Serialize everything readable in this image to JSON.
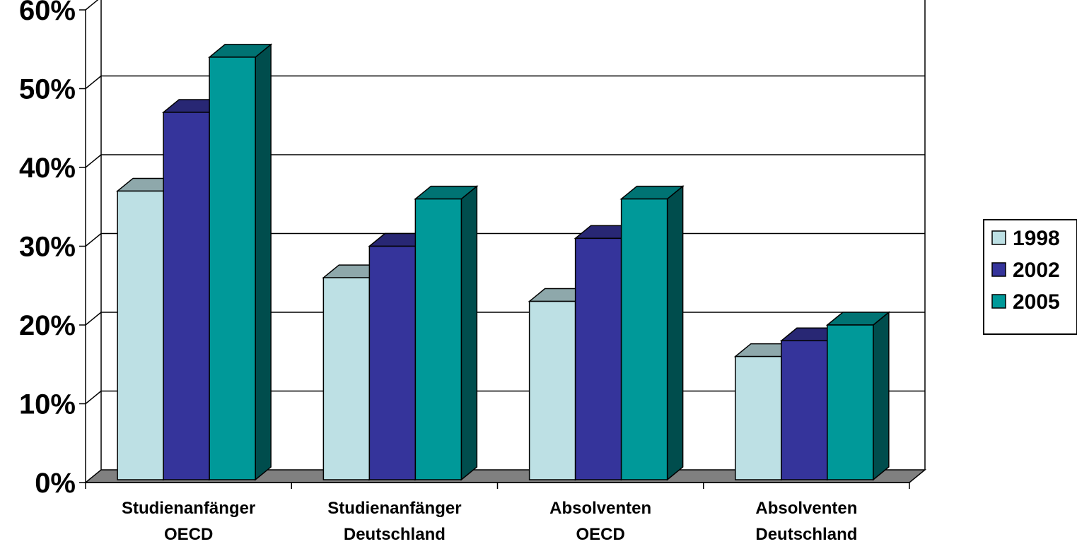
{
  "chart_data": {
    "type": "bar",
    "categories": [
      [
        "Studienanfänger",
        "OECD"
      ],
      [
        "Studienanfänger",
        "Deutschland"
      ],
      [
        "Absolventen",
        "OECD"
      ],
      [
        "Absolventen",
        "Deutschland"
      ]
    ],
    "series": [
      {
        "name": "1998",
        "values": [
          37,
          26,
          23,
          16
        ]
      },
      {
        "name": "2002",
        "values": [
          47,
          30,
          31,
          18
        ]
      },
      {
        "name": "2005",
        "values": [
          54,
          36,
          36,
          20
        ]
      }
    ],
    "ylim": [
      0,
      60
    ],
    "y_ticks": [
      "0%",
      "10%",
      "20%",
      "30%",
      "40%",
      "50%",
      "60%"
    ],
    "grid": true,
    "legend_position": "right",
    "three_d": true
  },
  "colors": {
    "series_front": [
      "#BDE0E4",
      "#35349B",
      "#009999"
    ],
    "series_top": [
      "#8EA8AB",
      "#282774",
      "#007373"
    ],
    "series_side": [
      "#5E7072",
      "#1A1A4E",
      "#004D4D"
    ],
    "floor": "#808080",
    "gridline": "#000000"
  }
}
